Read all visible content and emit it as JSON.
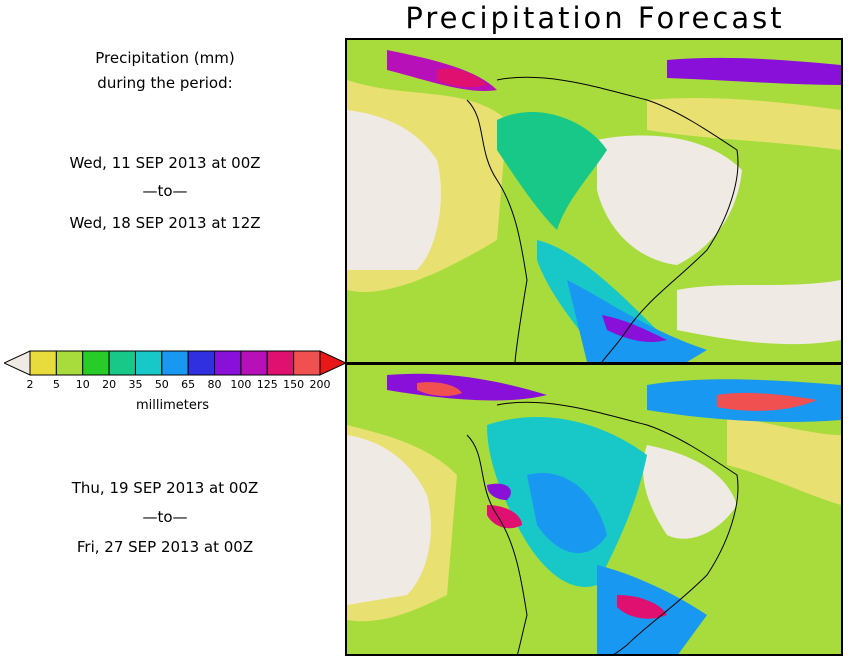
{
  "title": "Precipitation Forecast",
  "period_label": {
    "line1": "Precipitation (mm)",
    "line2": "during the period:"
  },
  "panels": [
    {
      "start": "Wed, 11 SEP 2013 at 00Z",
      "sep": "—to—",
      "end": "Wed, 18 SEP 2013 at 12Z"
    },
    {
      "start": "Thu, 19 SEP 2013 at 00Z",
      "sep": "—to—",
      "end": "Fri, 27 SEP 2013 at 00Z"
    }
  ],
  "legend": {
    "units": "millimeters",
    "ticks": [
      "2",
      "5",
      "10",
      "20",
      "35",
      "50",
      "65",
      "80",
      "100",
      "125",
      "150",
      "200"
    ],
    "colors": [
      "#f0eae4",
      "#e8dc3c",
      "#a8dc3c",
      "#28cc28",
      "#18c888",
      "#18c8c8",
      "#1898f0",
      "#3030e0",
      "#8810d8",
      "#b810b8",
      "#e01070",
      "#f05050",
      "#e81818"
    ]
  },
  "palette": {
    "dry": "#f0eae4",
    "ocean_light": "#e8e070",
    "ocean_green": "#a8dc3c"
  }
}
